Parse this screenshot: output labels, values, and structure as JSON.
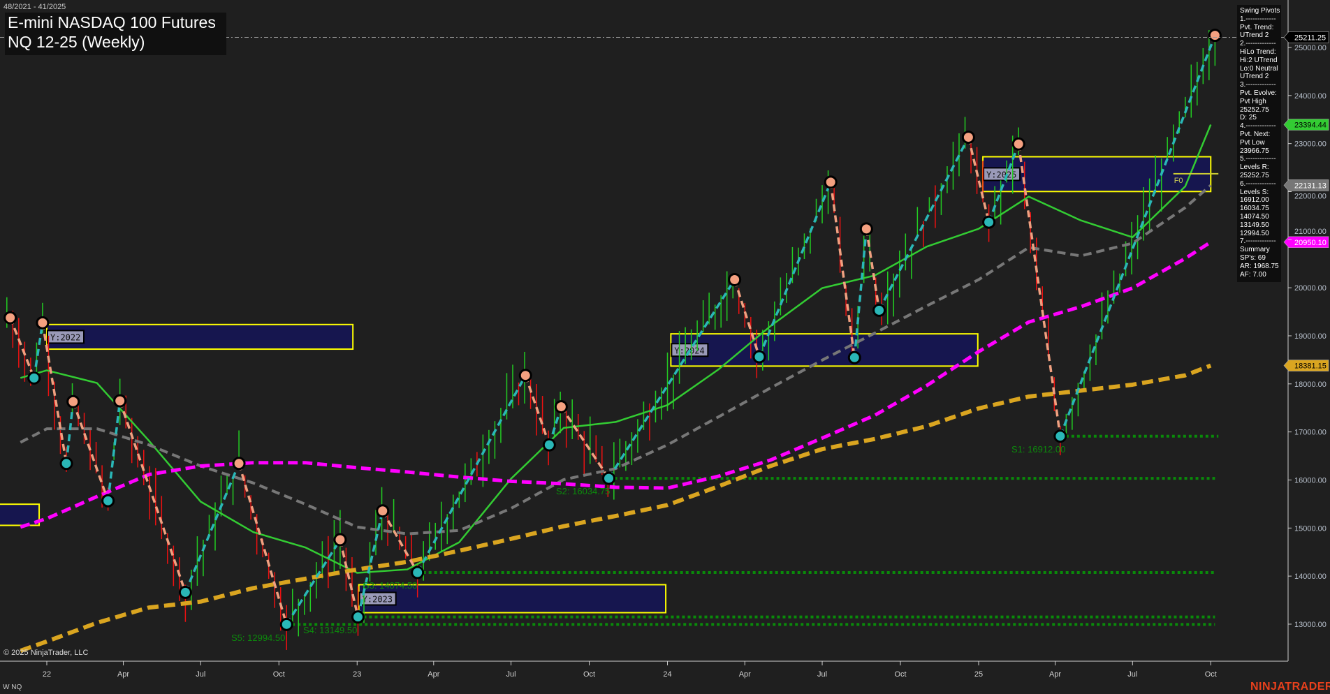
{
  "header": {
    "date_range": "48/2021 - 41/2025",
    "title": "E-mini NASDAQ 100 Futures",
    "subtitle": "NQ 12-25 (Weekly)"
  },
  "info_panel": {
    "lines": [
      "Swing Pivots",
      "1.-------------",
      "Pvt. Trend:",
      "UTrend 2",
      "2.-------------",
      "HiLo Trend:",
      "Hi:2 UTrend",
      "Lo:0 Neutral",
      "UTrend 2",
      "3.-------------",
      "Pvt. Evolve:",
      "Pvt High",
      "25252.75",
      "D: 25",
      "4.-------------",
      "Pvt. Next:",
      "Pvt Low",
      "23966.75",
      "5.-------------",
      "Levels R:",
      "25252.75",
      "6.-------------",
      "Levels S:",
      "16912.00",
      "16034.75",
      "14074.50",
      "13149.50",
      "12994.50",
      "7.-------------",
      "Summary",
      "SP's: 69",
      "AR: 1968.75",
      "AF: 7.00"
    ]
  },
  "footer": {
    "copyright": "© 2025 NinjaTrader, LLC",
    "instrument_tag": "W NQ",
    "logo": "NINJATRADER"
  },
  "chart_data": {
    "type": "ohlc-bar",
    "ylim": [
      12300,
      25500
    ],
    "y_ticks": [
      "13000.00",
      "14000.00",
      "15000.00",
      "16000.00",
      "17000.00",
      "18000.00",
      "19000.00",
      "20000.00",
      "21000.00",
      "22000.00",
      "23000.00",
      "24000.00",
      "25000.00"
    ],
    "x_ticks": [
      {
        "label": "22",
        "date": "2022-01-01"
      },
      {
        "label": "Apr",
        "date": "2022-04-01"
      },
      {
        "label": "Jul",
        "date": "2022-07-01"
      },
      {
        "label": "Oct",
        "date": "2022-10-01"
      },
      {
        "label": "23",
        "date": "2023-01-01"
      },
      {
        "label": "Apr",
        "date": "2023-04-01"
      },
      {
        "label": "Jul",
        "date": "2023-07-01"
      },
      {
        "label": "Oct",
        "date": "2023-10-01"
      },
      {
        "label": "24",
        "date": "2024-01-01"
      },
      {
        "label": "Apr",
        "date": "2024-04-01"
      },
      {
        "label": "Jul",
        "date": "2024-07-01"
      },
      {
        "label": "Oct",
        "date": "2024-10-01"
      },
      {
        "label": "25",
        "date": "2025-01-01"
      },
      {
        "label": "Apr",
        "date": "2025-04-01"
      },
      {
        "label": "Jul",
        "date": "2025-07-01"
      },
      {
        "label": "Oct",
        "date": "2025-10-01"
      }
    ],
    "last_price": {
      "value": "25211.25",
      "color": "#000000"
    },
    "swing_pivots": [
      {
        "date": "2021-11-19",
        "price": 19376,
        "type": "high"
      },
      {
        "date": "2021-12-17",
        "price": 18123,
        "type": "low"
      },
      {
        "date": "2021-12-27",
        "price": 19271,
        "type": "high"
      },
      {
        "date": "2022-01-24",
        "price": 16344,
        "type": "low"
      },
      {
        "date": "2022-02-01",
        "price": 17630,
        "type": "high"
      },
      {
        "date": "2022-03-14",
        "price": 15568,
        "type": "low"
      },
      {
        "date": "2022-03-28",
        "price": 17647,
        "type": "high"
      },
      {
        "date": "2022-06-13",
        "price": 13662,
        "type": "low"
      },
      {
        "date": "2022-08-15",
        "price": 16344,
        "type": "high"
      },
      {
        "date": "2022-10-10",
        "price": 12994.5,
        "type": "low"
      },
      {
        "date": "2022-12-12",
        "price": 14757,
        "type": "high"
      },
      {
        "date": "2023-01-02",
        "price": 13149.5,
        "type": "low"
      },
      {
        "date": "2023-01-31",
        "price": 15356,
        "type": "high"
      },
      {
        "date": "2023-03-13",
        "price": 14074.5,
        "type": "low"
      },
      {
        "date": "2023-07-18",
        "price": 18176,
        "type": "high"
      },
      {
        "date": "2023-08-15",
        "price": 16731,
        "type": "low"
      },
      {
        "date": "2023-08-29",
        "price": 17524,
        "type": "high"
      },
      {
        "date": "2023-10-24",
        "price": 16034.75,
        "type": "low"
      },
      {
        "date": "2024-03-20",
        "price": 20169,
        "type": "high"
      },
      {
        "date": "2024-04-18",
        "price": 18564,
        "type": "low"
      },
      {
        "date": "2024-07-11",
        "price": 22198,
        "type": "high"
      },
      {
        "date": "2024-08-08",
        "price": 18547,
        "type": "low"
      },
      {
        "date": "2024-08-22",
        "price": 21224,
        "type": "high"
      },
      {
        "date": "2024-09-06",
        "price": 19531,
        "type": "low"
      },
      {
        "date": "2024-12-20",
        "price": 23132,
        "type": "high"
      },
      {
        "date": "2025-01-13",
        "price": 21365,
        "type": "low"
      },
      {
        "date": "2025-02-17",
        "price": 22991,
        "type": "high"
      },
      {
        "date": "2025-04-07",
        "price": 16912,
        "type": "low"
      },
      {
        "date": "2025-10-06",
        "price": 25252.75,
        "type": "high"
      }
    ],
    "ma_dates": [
      "2021-12-01",
      "2022-01-01",
      "2022-03-01",
      "2022-05-01",
      "2022-07-01",
      "2022-09-01",
      "2022-11-01",
      "2023-01-01",
      "2023-03-01",
      "2023-05-01",
      "2023-07-01",
      "2023-09-01",
      "2023-11-01",
      "2024-01-01",
      "2024-03-01",
      "2024-05-01",
      "2024-07-01",
      "2024-09-01",
      "2024-11-01",
      "2025-01-01",
      "2025-03-01",
      "2025-05-01",
      "2025-07-01",
      "2025-09-01",
      "2025-10-01"
    ],
    "series": [
      {
        "key": "fast",
        "color": "#33cc33",
        "label": "23394.44",
        "values": [
          18124,
          18282,
          18018,
          16819,
          15549,
          14915,
          14597,
          14068,
          14139,
          14703,
          16026,
          17084,
          17207,
          17559,
          18300,
          19199,
          19993,
          20257,
          20857,
          21227,
          21897,
          21403,
          21051,
          22109,
          23394.44
        ]
      },
      {
        "key": "mid",
        "color": "#777777",
        "label": "22131.13",
        "values": [
          16783,
          17066,
          17066,
          16731,
          16290,
          15937,
          15497,
          15021,
          14879,
          14950,
          15408,
          16008,
          16237,
          16731,
          17313,
          17913,
          18494,
          19058,
          19623,
          20169,
          20839,
          20663,
          20927,
          21668,
          22131.13
        ]
      },
      {
        "key": "slow",
        "color": "#ff00ff",
        "label": "20950.10",
        "values": [
          15020,
          15197,
          15655,
          16113,
          16290,
          16360,
          16360,
          16255,
          16166,
          16061,
          15972,
          15920,
          15849,
          15831,
          16078,
          16413,
          16872,
          17348,
          17965,
          18670,
          19287,
          19605,
          19993,
          20610,
          20950.1
        ]
      },
      {
        "key": "long",
        "color": "#daa520",
        "label": "18381.15",
        "values": [
          12446,
          12640,
          13028,
          13345,
          13469,
          13751,
          13945,
          14138,
          14297,
          14527,
          14774,
          15038,
          15250,
          15479,
          15867,
          16290,
          16643,
          16854,
          17119,
          17489,
          17736,
          17859,
          17983,
          18177,
          18381.15
        ]
      }
    ],
    "year_zones": [
      {
        "label": "",
        "start": "2021-11-01",
        "end": "2021-12-23",
        "high": 15496,
        "low": 15056
      },
      {
        "label": "Y:2022",
        "start": "2022-01-01",
        "end": "2022-12-27",
        "high": 19235,
        "low": 18723
      },
      {
        "label": "Y:2023",
        "start": "2023-01-03",
        "end": "2023-12-30",
        "high": 13821,
        "low": 13239
      },
      {
        "label": "Y:2024",
        "start": "2024-01-05",
        "end": "2024-12-31",
        "high": 19041,
        "low": 18370
      },
      {
        "label": "Y:2025",
        "start": "2025-01-06",
        "end": "2025-10-01",
        "high": 22726,
        "low": 22003
      }
    ],
    "fib_marker": {
      "label": "F0",
      "price": 22373,
      "start": "2025-08-18",
      "end": "2025-10-10"
    },
    "support_levels": [
      {
        "label": "S1: 16912.00",
        "price": 16912,
        "start": "2025-04-07",
        "end": "2025-10-10"
      },
      {
        "label": "S2: 16034.75",
        "price": 16034.75,
        "start": "2023-10-24",
        "end": "2025-10-06"
      },
      {
        "label": "S3: 14074.50",
        "price": 14074.5,
        "start": "2023-03-13",
        "end": "2025-10-06"
      },
      {
        "label": "S4: 13149.50",
        "price": 13149.5,
        "start": "2023-01-02",
        "end": "2025-10-06"
      },
      {
        "label": "S5: 12994.50",
        "price": 12994.5,
        "start": "2022-10-10",
        "end": "2025-10-06"
      }
    ],
    "colors": {
      "background": "#1f1f1f",
      "up_bar": "#22cc22",
      "down_bar": "#ee1111",
      "up_leg": "#2ab7b7",
      "down_leg": "#f0a080",
      "zone_fill": "#16164f",
      "zone_border": "#ffff00",
      "support": "#0a8a0a"
    }
  }
}
